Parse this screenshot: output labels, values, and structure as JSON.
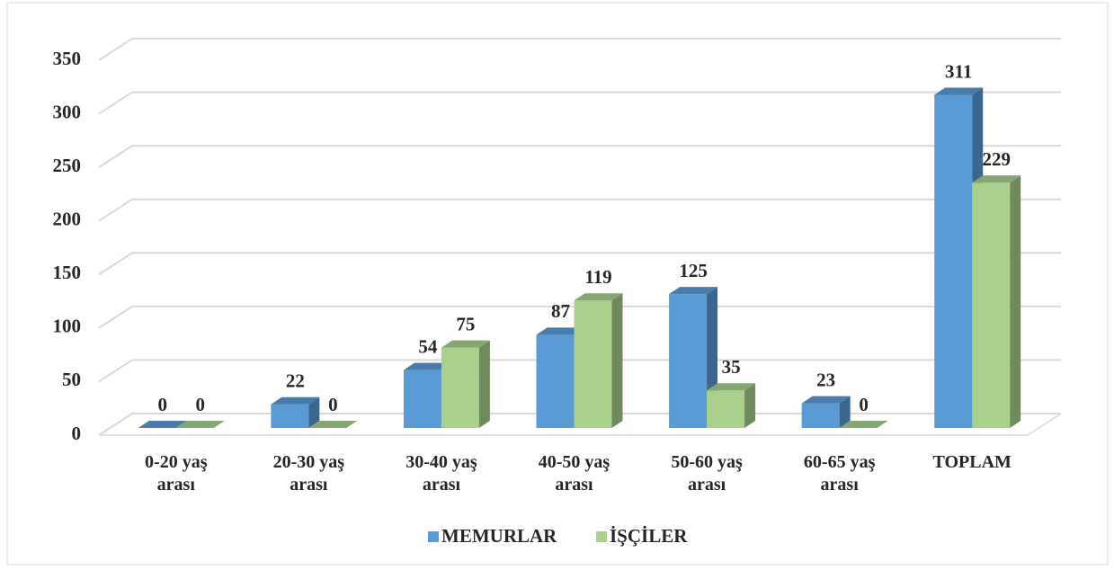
{
  "chart_data": {
    "type": "bar3d",
    "categories": [
      "0-20 yaş arası",
      "20-30 yaş arası",
      "30-40 yaş arası",
      "40-50 yaş arası",
      "50-60 yaş arası",
      "60-65 yaş arası",
      "TOPLAM"
    ],
    "series": [
      {
        "name": "MEMURLAR",
        "color": "#5b9bd5",
        "values": [
          0,
          22,
          54,
          87,
          125,
          23,
          311
        ]
      },
      {
        "name": "İŞÇİLER",
        "color": "#a9d18e",
        "values": [
          0,
          0,
          75,
          119,
          35,
          0,
          229
        ]
      }
    ],
    "ylim": [
      0,
      350
    ],
    "yticks": [
      0,
      50,
      100,
      150,
      200,
      250,
      300,
      350
    ],
    "grid": true,
    "legend": "bottom"
  }
}
